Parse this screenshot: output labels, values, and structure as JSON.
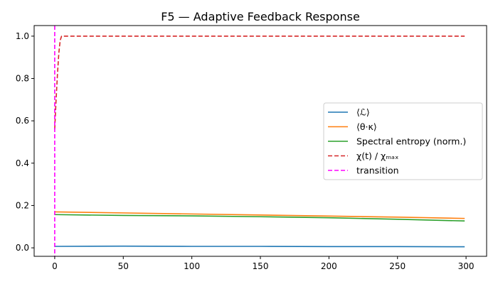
{
  "chart_data": {
    "type": "line",
    "title": "F5 — Adaptive Feedback Response",
    "xlabel": "",
    "ylabel": "",
    "xlim": [
      -15,
      315
    ],
    "ylim": [
      -0.04,
      1.05
    ],
    "x_ticks": [
      0,
      50,
      100,
      150,
      200,
      250,
      300
    ],
    "y_ticks": [
      0.0,
      0.2,
      0.4,
      0.6,
      0.8,
      1.0
    ],
    "x_tick_labels": [
      "0",
      "50",
      "100",
      "150",
      "200",
      "250",
      "300"
    ],
    "y_tick_labels": [
      "0.0",
      "0.2",
      "0.4",
      "0.6",
      "0.8",
      "1.0"
    ],
    "grid": false,
    "legend_position": "center-right",
    "series": [
      {
        "name": "⟨ℒ⟩",
        "color": "#1f77b4",
        "style": "solid",
        "x": [
          0,
          50,
          100,
          150,
          200,
          250,
          299
        ],
        "y": [
          0.007,
          0.008,
          0.007,
          0.007,
          0.006,
          0.006,
          0.005
        ]
      },
      {
        "name": "⟨θ·κ⟩",
        "color": "#ff7f0e",
        "style": "solid",
        "x": [
          0,
          50,
          100,
          150,
          200,
          250,
          299
        ],
        "y": [
          0.17,
          0.165,
          0.16,
          0.155,
          0.15,
          0.145,
          0.139
        ]
      },
      {
        "name": "Spectral entropy (norm.)",
        "color": "#2ca02c",
        "style": "solid",
        "x": [
          0,
          50,
          100,
          150,
          200,
          250,
          299
        ],
        "y": [
          0.157,
          0.153,
          0.151,
          0.147,
          0.142,
          0.135,
          0.127
        ]
      },
      {
        "name": "χ(t) / χₘₐₓ",
        "color": "#d62728",
        "style": "dashed",
        "x": [
          0,
          1,
          2,
          3,
          4,
          5,
          50,
          100,
          150,
          200,
          250,
          299
        ],
        "y": [
          0.56,
          0.7,
          0.82,
          0.92,
          0.98,
          1.0,
          1.0,
          1.0,
          1.0,
          1.0,
          1.0,
          1.0
        ]
      },
      {
        "name": "transition",
        "color": "#ff00ff",
        "style": "dashed",
        "vline": 0
      }
    ]
  }
}
